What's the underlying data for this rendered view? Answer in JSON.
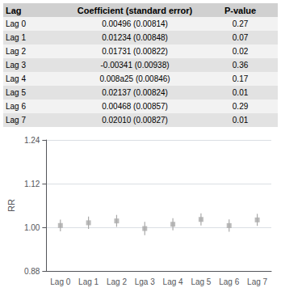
{
  "chart_data": {
    "type": "scatter",
    "categories": [
      "Lag 0",
      "Lag 1",
      "Lag 2",
      "Lga 3",
      "Lag 4",
      "Lag 5",
      "Lag 6",
      "Lag 7"
    ],
    "values": [
      1.00497,
      1.01242,
      1.01746,
      0.9966,
      1.00828,
      1.0216,
      1.00469,
      1.0203
    ],
    "lower": [
      0.98907,
      0.99573,
      1.0012,
      0.97844,
      0.9917,
      1.00523,
      0.98796,
      1.0039
    ],
    "upper": [
      1.02113,
      1.02938,
      1.03405,
      1.01509,
      1.02514,
      1.03823,
      1.02171,
      1.03698
    ],
    "color": "#aaaaaa",
    "ylabel": "RR",
    "ylim": [
      0.88,
      1.24
    ],
    "yticks": [
      0.88,
      {
        "value": 1.0,
        "label": "1.00"
      },
      1.12,
      1.24
    ],
    "grid": true,
    "marker": "square",
    "table": {
      "columns": [
        "Lag",
        "Coefficient (standard error)",
        "P-value"
      ],
      "rows": [
        [
          "Lag 0",
          "0.00496 (0.00814)",
          "0.27"
        ],
        [
          "Lag 1",
          "0.01234 (0.00848)",
          "0.07"
        ],
        [
          "Lag 2",
          "0.01731 (0.00822)",
          "0.02"
        ],
        [
          "Lag 3",
          "-0.00341 (0.00938)",
          "0.36"
        ],
        [
          "Lag 4",
          "0.008a25 (0.00846)",
          "0.17"
        ],
        [
          "Lag 5",
          "0.02137 (0.00824)",
          "0.01"
        ],
        [
          "Lag 6",
          "0.00468 (0.00857)",
          "0.29"
        ],
        [
          "Lag 7",
          "0.02010 (0.00827)",
          "0.01"
        ]
      ]
    }
  }
}
